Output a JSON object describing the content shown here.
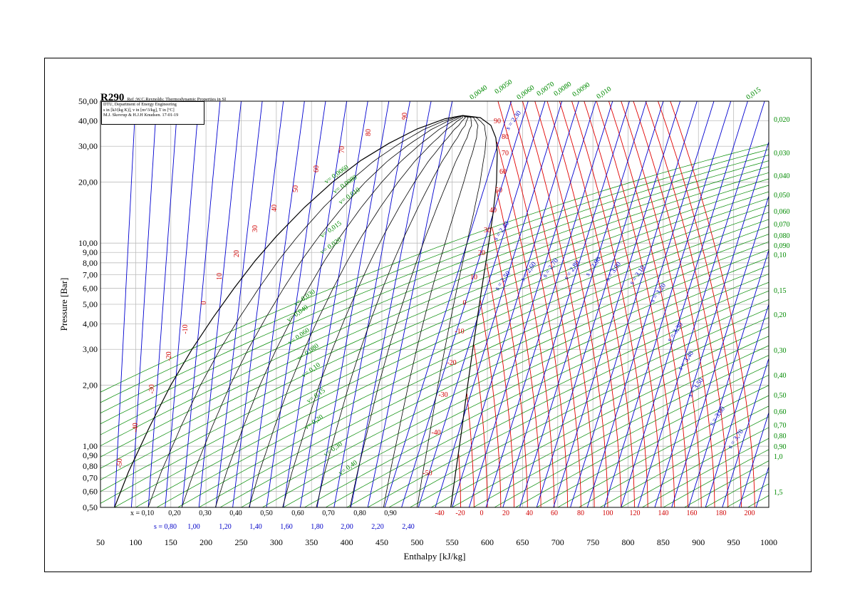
{
  "title": "R290",
  "reference": "Ref :W.C.Reynolds: Thermodynamic Properties in SI",
  "info_lines": [
    "DTU, Department of Energy Engineering",
    "s in [kJ/(kg K)], v in [m^3/kg], T in [ºC]",
    "M.J. Skovrup & H.J.H Knudsen. 17-01-19"
  ],
  "chart_data": {
    "type": "line",
    "title": "R290",
    "xlabel": "Enthalpy [kJ/kg]",
    "ylabel": "Pressure [Bar]",
    "xlim": [
      50,
      1000
    ],
    "ylim": [
      0.5,
      50
    ],
    "y_scale": "log",
    "grid": true,
    "x_ticks": [
      "50",
      "100",
      "150",
      "200",
      "250",
      "300",
      "350",
      "400",
      "450",
      "500",
      "550",
      "600",
      "650",
      "700",
      "750",
      "800",
      "850",
      "900",
      "950",
      "1000"
    ],
    "y_ticks": [
      "50,00",
      "40,00",
      "30,00",
      "20,00",
      "10,00",
      "9,00",
      "8,00",
      "7,00",
      "6,00",
      "5,00",
      "4,00",
      "3,00",
      "2,00",
      "1,00",
      "0,90",
      "0,80",
      "0,70",
      "0,60",
      "0,50"
    ],
    "quality_labels": [
      "x = 0,10",
      "0,20",
      "0,30",
      "0,40",
      "0,50",
      "0,60",
      "0,70",
      "0,80",
      "0,90"
    ],
    "entropy_bottom_labels": [
      "s = 0,80",
      "1,00",
      "1,20",
      "1,40",
      "1,60",
      "1,80",
      "2,00",
      "2,20",
      "2,40"
    ],
    "temperature_bottom_labels": [
      "-40",
      "-20",
      "0",
      "20",
      "40",
      "60",
      "80",
      "100",
      "120",
      "140",
      "160",
      "180",
      "200"
    ],
    "sat_temp_labels": [
      "-50",
      "-40",
      "-30",
      "-20",
      "-10",
      "0",
      "10",
      "20",
      "30",
      "40",
      "50",
      "60",
      "70",
      "80",
      "90"
    ],
    "vapor_temp_labels": [
      "90",
      "80",
      "70",
      "60",
      "50",
      "40",
      "30",
      "20",
      "10",
      "0",
      "-10",
      "-20",
      "-30",
      "-40",
      "-50"
    ],
    "volume_labels_right": [
      "0,020",
      "0,030",
      "0,040",
      "0,050",
      "0,060",
      "0,070",
      "0,080",
      "0,090",
      "0,10",
      "0,15",
      "0,20",
      "0,30",
      "0,40",
      "0,50",
      "0,60",
      "0,70",
      "0,80",
      "0,90",
      "1,0",
      "1,5"
    ],
    "volume_labels_top": [
      "0,0040",
      "0,0050",
      "0,0060",
      "0,0070",
      "0,0080",
      "0,0090",
      "0,010",
      "0,015"
    ],
    "volume_labels_inside": [
      "v= 0,0060",
      "v= 0,0080",
      "v= 0,010",
      "v= 0,015",
      "v= 0,020",
      "v= 0,030",
      "v= 0,040",
      "v= 0,060",
      "v= 0,080",
      "v= 0,10",
      "v= 0,15",
      "v= 0,20",
      "v= 0,30",
      "v= 0,40"
    ],
    "entropy_inside_labels": [
      "s = 2,30",
      "s = 2,40",
      "s = 2,50",
      "s = 2,60",
      "s = 2,70",
      "s = 2,80",
      "s = 2,90",
      "s = 3,00",
      "s = 3,10",
      "s = 3,20",
      "s = 3,30",
      "s = 3,40",
      "s = 3,50",
      "s = 3,60",
      "s = 3,70"
    ],
    "saturation_dome": {
      "critical_point": {
        "h": 565,
        "p": 42.5
      },
      "liquid_line": [
        [
          70,
          0.5
        ],
        [
          90,
          0.75
        ],
        [
          120,
          1.25
        ],
        [
          150,
          2.0
        ],
        [
          180,
          3.0
        ],
        [
          210,
          4.3
        ],
        [
          240,
          6.0
        ],
        [
          270,
          8.2
        ],
        [
          300,
          10.8
        ],
        [
          340,
          15.0
        ],
        [
          380,
          20.0
        ],
        [
          420,
          25.5
        ],
        [
          460,
          31.0
        ],
        [
          500,
          36.5
        ],
        [
          540,
          41.0
        ],
        [
          565,
          42.5
        ]
      ],
      "vapor_line": [
        [
          565,
          42.5
        ],
        [
          590,
          41.5
        ],
        [
          605,
          38.0
        ],
        [
          612,
          33.0
        ],
        [
          614,
          28.0
        ],
        [
          613,
          20.0
        ],
        [
          608,
          14.0
        ],
        [
          600,
          9.0
        ],
        [
          592,
          6.0
        ],
        [
          582,
          3.5
        ],
        [
          572,
          2.0
        ],
        [
          562,
          1.1
        ],
        [
          555,
          0.75
        ],
        [
          548,
          0.5
        ]
      ]
    }
  }
}
